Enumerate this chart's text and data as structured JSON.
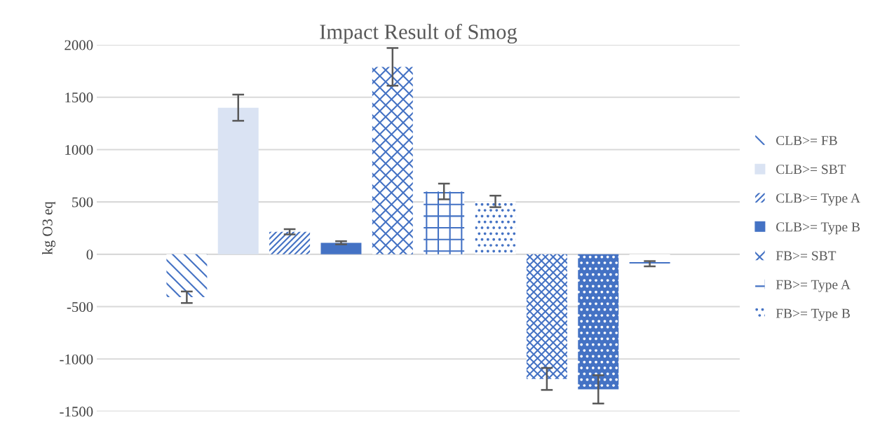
{
  "chart_data": {
    "type": "bar",
    "title": "Impact Result of Smog",
    "ylabel": "kg O3 eq",
    "categories": [
      null
    ],
    "series": [
      {
        "name": "CLB>= FB",
        "color": "#4472c4",
        "values": [
          -410
        ],
        "errors": [
          55
        ]
      },
      {
        "name": "CLB>= SBT",
        "color": "#dae3f3",
        "values": [
          1400
        ],
        "errors": [
          125
        ]
      },
      {
        "name": "CLB>= Type A",
        "color": "#4472c4",
        "values": [
          215
        ],
        "errors": [
          25
        ]
      },
      {
        "name": "CLB>= Type B",
        "color": "#4472c4",
        "values": [
          110
        ],
        "errors": [
          15
        ]
      },
      {
        "name": "FB>= SBT",
        "color": "#4472c4",
        "values": [
          1790
        ],
        "errors": [
          180
        ]
      },
      {
        "name": "FB>= Type A",
        "color": "#4472c4",
        "values": [
          600
        ],
        "errors": [
          75
        ]
      },
      {
        "name": "FB>= Type B",
        "color": "#4472c4",
        "values": [
          505
        ],
        "errors": [
          55
        ]
      },
      {
        "color": "#4472c4",
        "values": [
          -1190
        ],
        "errors": [
          105
        ]
      },
      {
        "color": "#4472c4",
        "values": [
          -1290
        ],
        "errors": [
          135
        ]
      },
      {
        "color": "#4472c4",
        "values": [
          -90
        ],
        "errors": [
          25
        ]
      }
    ],
    "ylim": [
      -1500,
      2000
    ],
    "yticks": [
      -1500,
      -1000,
      -500,
      0,
      500,
      1000,
      1500,
      2000
    ],
    "grid": "y",
    "legend": "right"
  }
}
